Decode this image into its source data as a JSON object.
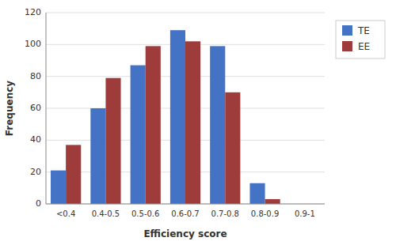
{
  "chart_data": {
    "type": "bar",
    "categories": [
      "<0.4",
      "0.4-0.5",
      "0.5-0.6",
      "0.6-0.7",
      "0.7-0.8",
      "0.8-0.9",
      "0.9-1"
    ],
    "series": [
      {
        "name": "TE",
        "color": "#4472C4",
        "values": [
          21,
          60,
          87,
          109,
          99,
          13,
          0
        ]
      },
      {
        "name": "EE",
        "color": "#9E3B3B",
        "values": [
          37,
          79,
          99,
          102,
          70,
          3,
          0
        ]
      }
    ],
    "xlabel": "Efficiency score",
    "ylabel": "Frequency",
    "ylim": [
      0,
      120
    ],
    "yticks": [
      0,
      20,
      40,
      60,
      80,
      100,
      120
    ],
    "grid": true,
    "legend": "right"
  }
}
